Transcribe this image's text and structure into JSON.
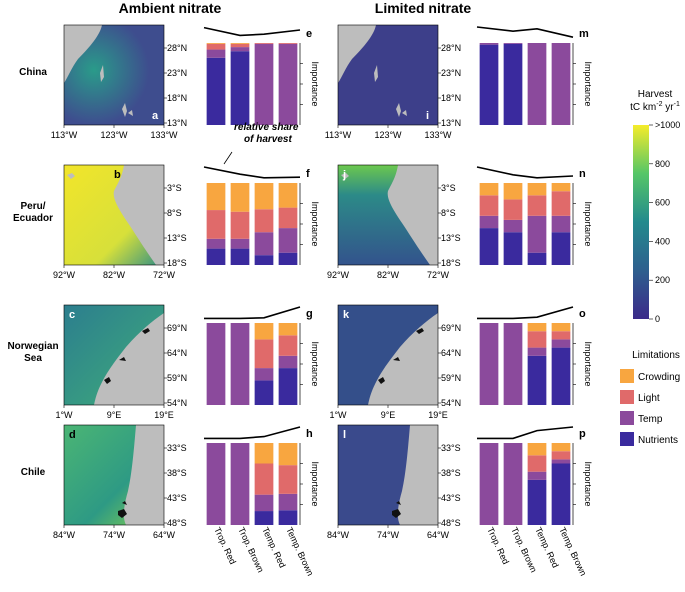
{
  "headers": {
    "ambient": "Ambient nitrate",
    "limited": "Limited nitrate"
  },
  "regions": [
    {
      "name": "China",
      "lat": [
        "28°N",
        "23°N",
        "18°N",
        "13°N"
      ],
      "lon": [
        "113°W",
        "123°W",
        "133°W"
      ],
      "map_letters": [
        "a",
        "i"
      ],
      "bar_letters": [
        "e",
        "m"
      ]
    },
    {
      "name": "Peru/\nEcuador",
      "lat": [
        "3°S",
        "8°S",
        "13°S",
        "18°S"
      ],
      "lon": [
        "92°W",
        "82°W",
        "72°W"
      ],
      "map_letters": [
        "b",
        "j"
      ],
      "bar_letters": [
        "f",
        "n"
      ]
    },
    {
      "name": "Norwegian\nSea",
      "lat": [
        "69°N",
        "64°N",
        "59°N",
        "54°N"
      ],
      "lon": [
        "1°W",
        "9°E",
        "19°E"
      ],
      "map_letters": [
        "c",
        "k"
      ],
      "bar_letters": [
        "g",
        "o"
      ]
    },
    {
      "name": "Chile",
      "lat": [
        "33°S",
        "38°S",
        "43°S",
        "48°S"
      ],
      "lon": [
        "84°W",
        "74°W",
        "64°W"
      ],
      "map_letters": [
        "d",
        "l"
      ],
      "bar_letters": [
        "h",
        "p"
      ]
    }
  ],
  "annotation": "relative share\nof harvest",
  "importance_label": "Importance",
  "categories": [
    "Trop. Red",
    "Trop. Brown",
    "Temp. Red",
    "Temp. Brown"
  ],
  "colorbar": {
    "title": "Harvest",
    "units": "tC km-2 yr-1",
    "ticks": [
      ">1000",
      "800",
      "600",
      "400",
      "200",
      "0"
    ],
    "range": [
      0,
      1000
    ]
  },
  "legend": {
    "title": "Limitations",
    "items": [
      {
        "label": "Crowding",
        "color": "#F8A640"
      },
      {
        "label": "Light",
        "color": "#E06A6A"
      },
      {
        "label": "Temp",
        "color": "#8B4A9C"
      },
      {
        "label": "Nutrients",
        "color": "#3A2A9E"
      }
    ]
  },
  "chart_data": [
    {
      "panel": "e",
      "type": "stacked-bar",
      "region": "China",
      "scenario": "Ambient nitrate",
      "categories": [
        "Trop. Red",
        "Trop. Brown",
        "Temp. Red",
        "Temp. Brown"
      ],
      "series": [
        {
          "name": "Nutrients",
          "values": [
            0.82,
            0.9,
            0,
            0
          ]
        },
        {
          "name": "Temp",
          "values": [
            0.1,
            0.05,
            0.99,
            0.99
          ]
        },
        {
          "name": "Light",
          "values": [
            0.07,
            0.04,
            0.01,
            0.01
          ]
        },
        {
          "name": "Crowding",
          "values": [
            0.01,
            0.01,
            0,
            0
          ]
        }
      ],
      "harvest_share": [
        0.95,
        0.3,
        0.4,
        0.75
      ]
    },
    {
      "panel": "m",
      "type": "stacked-bar",
      "region": "China",
      "scenario": "Limited nitrate",
      "categories": [
        "Trop. Red",
        "Trop. Brown",
        "Temp. Red",
        "Temp. Brown"
      ],
      "series": [
        {
          "name": "Nutrients",
          "values": [
            0.98,
            0.99,
            0,
            0
          ]
        },
        {
          "name": "Temp",
          "values": [
            0.02,
            0.01,
            1.0,
            1.0
          ]
        },
        {
          "name": "Light",
          "values": [
            0,
            0,
            0,
            0
          ]
        },
        {
          "name": "Crowding",
          "values": [
            0,
            0,
            0,
            0
          ]
        }
      ],
      "harvest_share": [
        1.0,
        0.65,
        0.85,
        0.15
      ]
    },
    {
      "panel": "f",
      "type": "stacked-bar",
      "region": "Peru/Ecuador",
      "scenario": "Ambient nitrate",
      "categories": [
        "Trop. Red",
        "Trop. Brown",
        "Temp. Red",
        "Temp. Brown"
      ],
      "series": [
        {
          "name": "Nutrients",
          "values": [
            0.2,
            0.2,
            0.12,
            0.15
          ]
        },
        {
          "name": "Temp",
          "values": [
            0.12,
            0.12,
            0.28,
            0.3
          ]
        },
        {
          "name": "Light",
          "values": [
            0.35,
            0.33,
            0.28,
            0.25
          ]
        },
        {
          "name": "Crowding",
          "values": [
            0.33,
            0.35,
            0.32,
            0.3
          ]
        }
      ],
      "harvest_share": [
        1.0,
        0.4,
        0.1,
        0.15
      ]
    },
    {
      "panel": "n",
      "type": "stacked-bar",
      "region": "Peru/Ecuador",
      "scenario": "Limited nitrate",
      "categories": [
        "Trop. Red",
        "Trop. Brown",
        "Temp. Red",
        "Temp. Brown"
      ],
      "series": [
        {
          "name": "Nutrients",
          "values": [
            0.45,
            0.4,
            0.15,
            0.4
          ]
        },
        {
          "name": "Temp",
          "values": [
            0.15,
            0.15,
            0.45,
            0.2
          ]
        },
        {
          "name": "Light",
          "values": [
            0.25,
            0.25,
            0.25,
            0.3
          ]
        },
        {
          "name": "Crowding",
          "values": [
            0.15,
            0.2,
            0.15,
            0.1
          ]
        }
      ],
      "harvest_share": [
        1.0,
        0.35,
        0.1,
        0.25
      ]
    },
    {
      "panel": "g",
      "type": "stacked-bar",
      "region": "Norwegian Sea",
      "scenario": "Ambient nitrate",
      "categories": [
        "Trop. Red",
        "Trop. Brown",
        "Temp. Red",
        "Temp. Brown"
      ],
      "series": [
        {
          "name": "Nutrients",
          "values": [
            0,
            0,
            0.3,
            0.45
          ]
        },
        {
          "name": "Temp",
          "values": [
            1.0,
            1.0,
            0.15,
            0.15
          ]
        },
        {
          "name": "Light",
          "values": [
            0,
            0,
            0.35,
            0.25
          ]
        },
        {
          "name": "Crowding",
          "values": [
            0,
            0,
            0.2,
            0.15
          ]
        }
      ],
      "harvest_share": [
        0.05,
        0.05,
        0.1,
        1.0
      ]
    },
    {
      "panel": "o",
      "type": "stacked-bar",
      "region": "Norwegian Sea",
      "scenario": "Limited nitrate",
      "categories": [
        "Trop. Red",
        "Trop. Brown",
        "Temp. Red",
        "Temp. Brown"
      ],
      "series": [
        {
          "name": "Nutrients",
          "values": [
            0,
            0,
            0.6,
            0.7
          ]
        },
        {
          "name": "Temp",
          "values": [
            1.0,
            1.0,
            0.1,
            0.1
          ]
        },
        {
          "name": "Light",
          "values": [
            0,
            0,
            0.2,
            0.1
          ]
        },
        {
          "name": "Crowding",
          "values": [
            0,
            0,
            0.1,
            0.1
          ]
        }
      ],
      "harvest_share": [
        0.05,
        0.05,
        0.15,
        1.0
      ]
    },
    {
      "panel": "h",
      "type": "stacked-bar",
      "region": "Chile",
      "scenario": "Ambient nitrate",
      "categories": [
        "Trop. Red",
        "Trop. Brown",
        "Temp. Red",
        "Temp. Brown"
      ],
      "series": [
        {
          "name": "Nutrients",
          "values": [
            0,
            0,
            0.17,
            0.18
          ]
        },
        {
          "name": "Temp",
          "values": [
            1.0,
            1.0,
            0.2,
            0.2
          ]
        },
        {
          "name": "Light",
          "values": [
            0,
            0,
            0.38,
            0.35
          ]
        },
        {
          "name": "Crowding",
          "values": [
            0,
            0,
            0.25,
            0.27
          ]
        }
      ],
      "harvest_share": [
        0.05,
        0.05,
        0.2,
        1.0
      ]
    },
    {
      "panel": "p",
      "type": "stacked-bar",
      "region": "Chile",
      "scenario": "Limited nitrate",
      "categories": [
        "Trop. Red",
        "Trop. Brown",
        "Temp. Red",
        "Temp. Brown"
      ],
      "series": [
        {
          "name": "Nutrients",
          "values": [
            0,
            0,
            0.55,
            0.75
          ]
        },
        {
          "name": "Temp",
          "values": [
            1.0,
            1.0,
            0.1,
            0.05
          ]
        },
        {
          "name": "Light",
          "values": [
            0,
            0,
            0.2,
            0.1
          ]
        },
        {
          "name": "Crowding",
          "values": [
            0,
            0,
            0.15,
            0.1
          ]
        }
      ],
      "harvest_share": [
        0.05,
        0.05,
        0.7,
        1.0
      ]
    }
  ]
}
